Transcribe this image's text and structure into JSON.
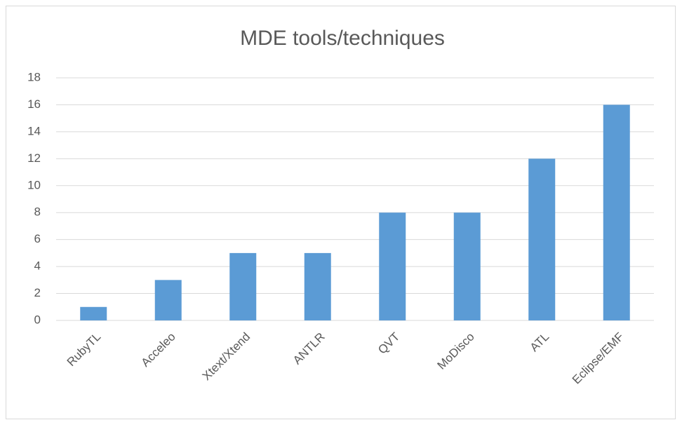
{
  "chart_data": {
    "type": "bar",
    "title": "MDE tools/techniques",
    "categories": [
      "RubyTL",
      "Acceleo",
      "Xtext/Xtend",
      "ANTLR",
      "QVT",
      "MoDisco",
      "ATL",
      "Eclipse/EMF"
    ],
    "values": [
      1,
      3,
      5,
      5,
      8,
      8,
      12,
      16
    ],
    "color": "#5b9bd5",
    "ylim": [
      0,
      18
    ],
    "yticks": [
      0,
      2,
      4,
      6,
      8,
      10,
      12,
      14,
      16,
      18
    ],
    "grid": true
  }
}
